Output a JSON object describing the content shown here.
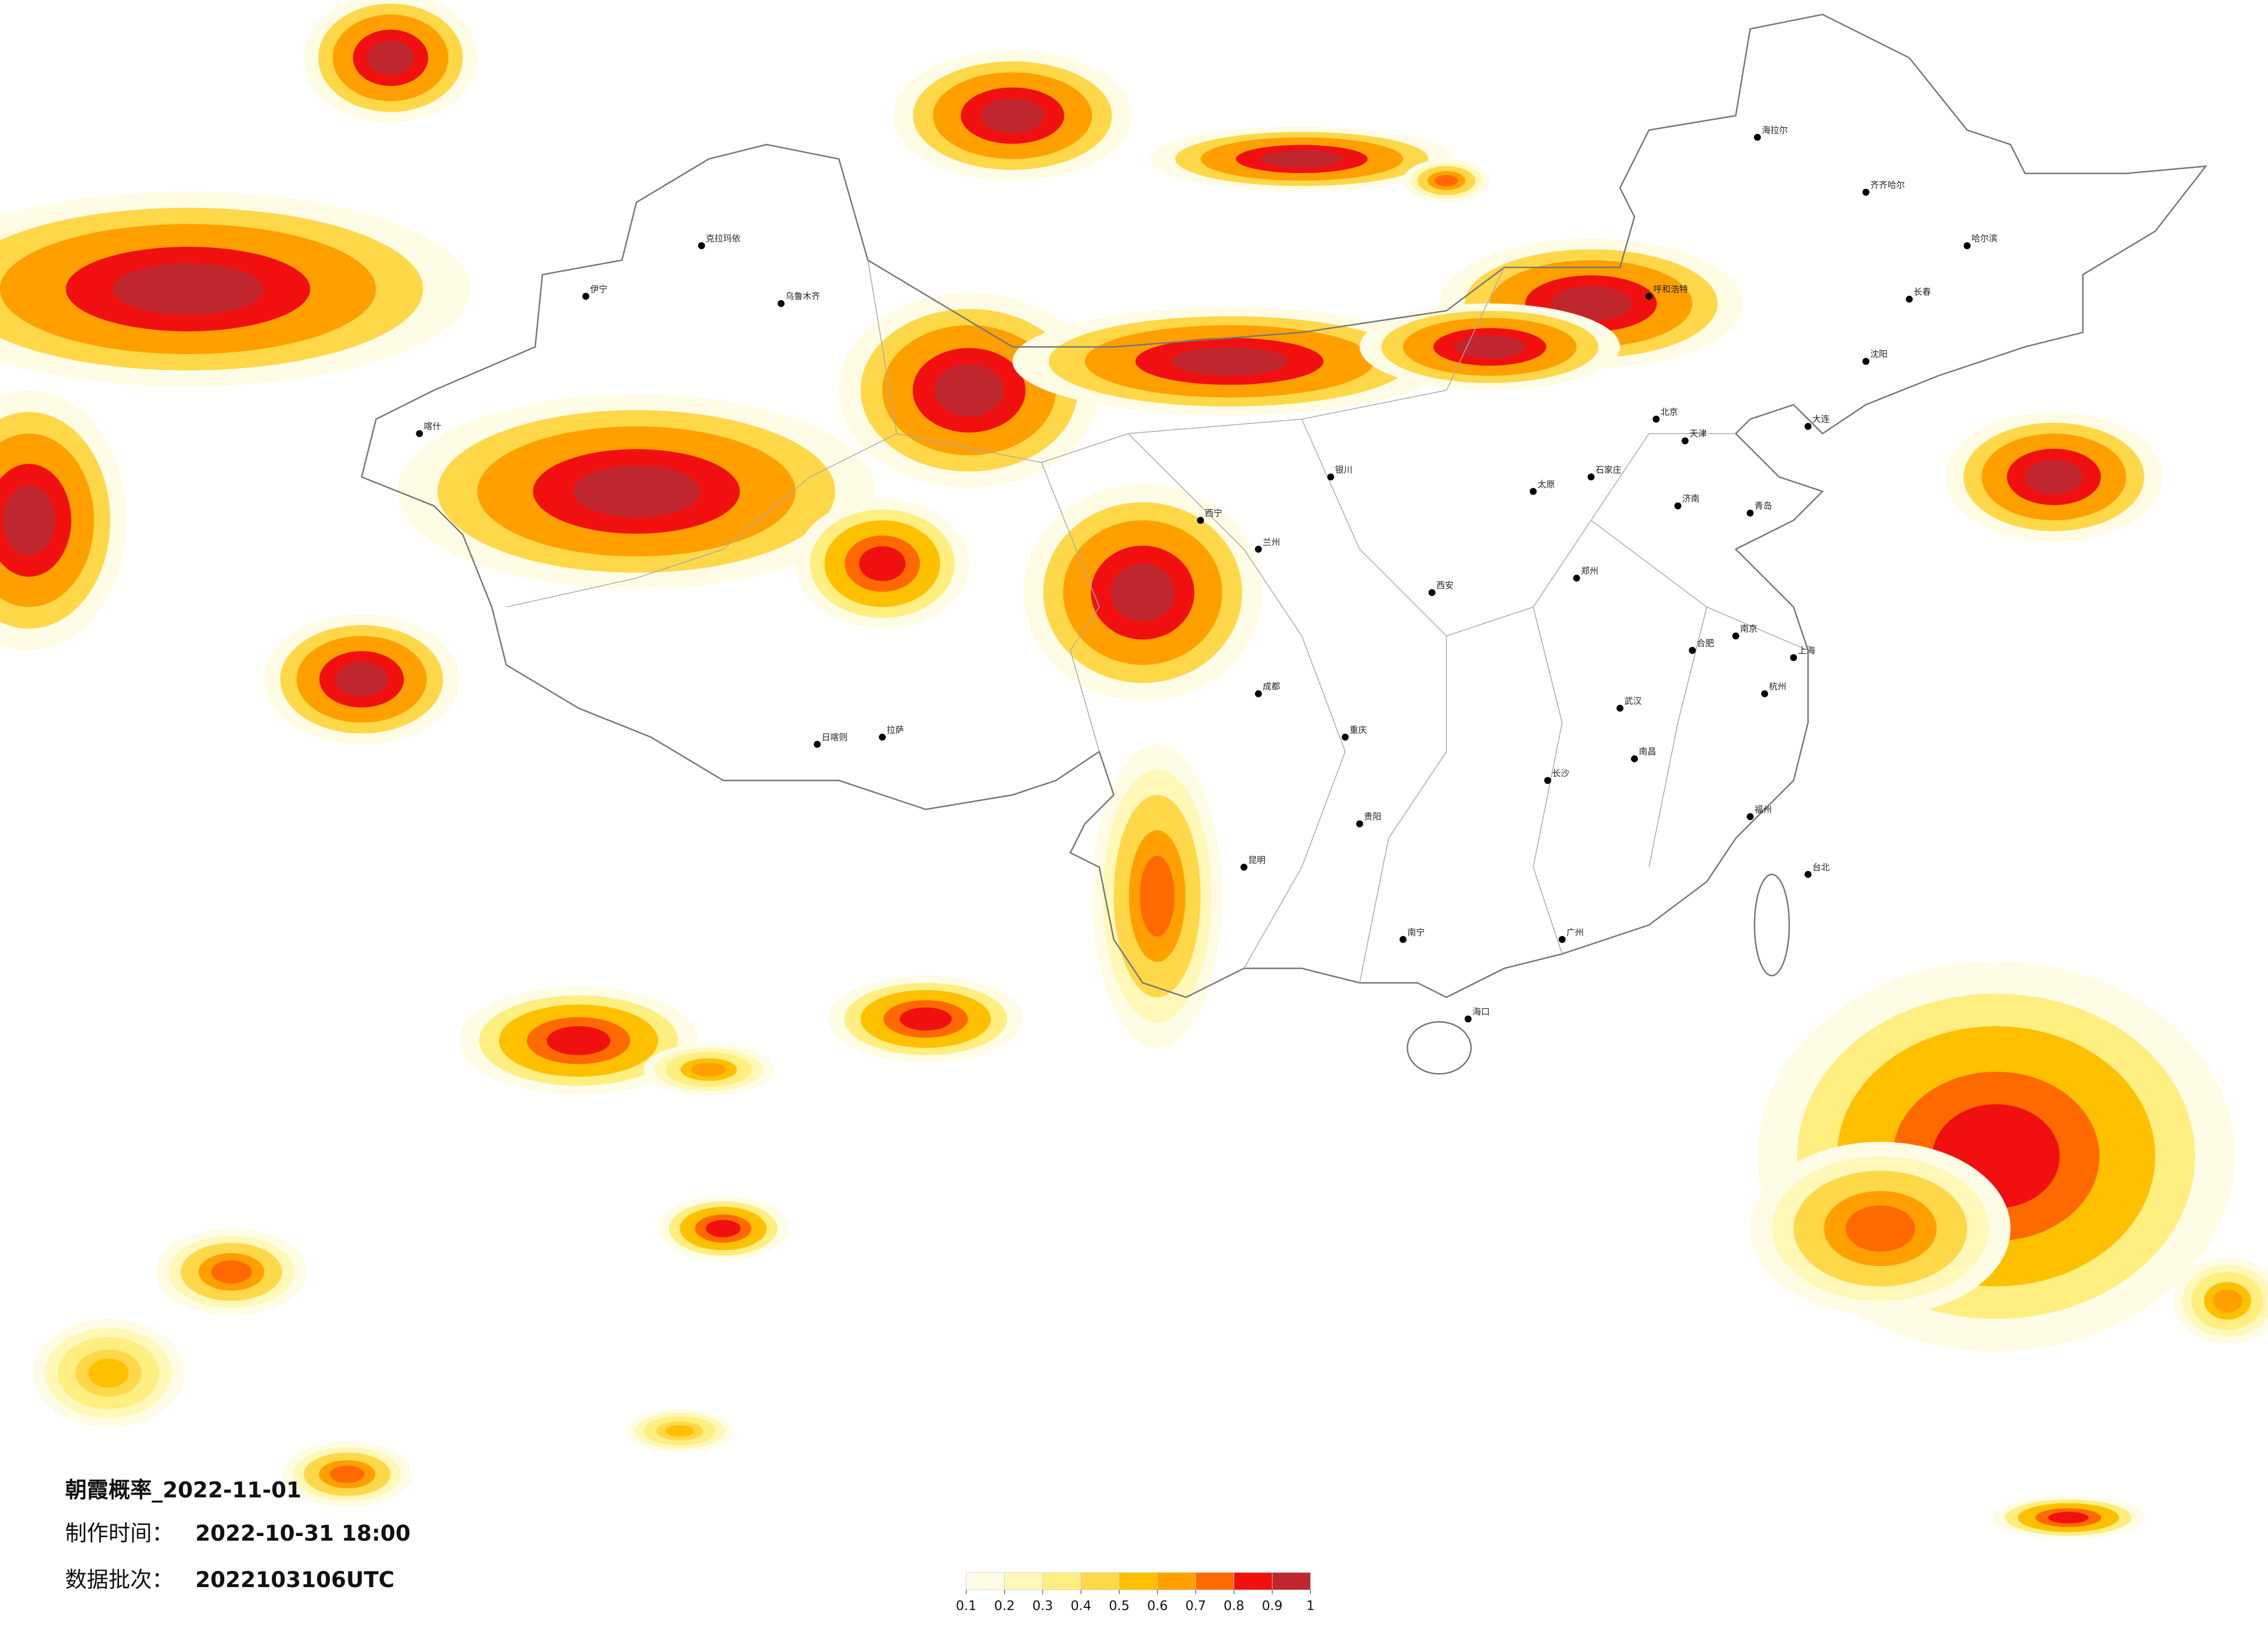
{
  "map": {
    "title": "朝霞概率_2022-11-01",
    "made_label": "制作时间：",
    "made_time": "2022-10-31 18:00",
    "batch_label": "数据批次：",
    "batch": "2022103106UTC",
    "colorbar": {
      "ticks": [
        0.1,
        0.2,
        0.3,
        0.4,
        0.5,
        0.6,
        0.7,
        0.8,
        0.9,
        1
      ],
      "colors": [
        "#fffce6",
        "#fff8b8",
        "#ffee80",
        "#ffd84a",
        "#ffc000",
        "#ffa000",
        "#ff6a00",
        "#f01010",
        "#c0262e"
      ]
    },
    "cities": [
      "哈尔滨",
      "长春",
      "沈阳",
      "北京",
      "天津",
      "石家庄",
      "太原",
      "济南",
      "郑州",
      "西安",
      "南京",
      "上海",
      "杭州",
      "合肥",
      "武汉",
      "长沙",
      "南昌",
      "福州",
      "广州",
      "南宁",
      "贵阳",
      "昆明",
      "成都",
      "重庆",
      "兰州",
      "西宁",
      "银川",
      "呼和浩特",
      "乌鲁木齐",
      "拉萨",
      "海口",
      "台北",
      "海拉尔",
      "喀什",
      "日喀则",
      "克拉玛依",
      "伊宁",
      "齐齐哈尔",
      "大连",
      "青岛"
    ]
  }
}
